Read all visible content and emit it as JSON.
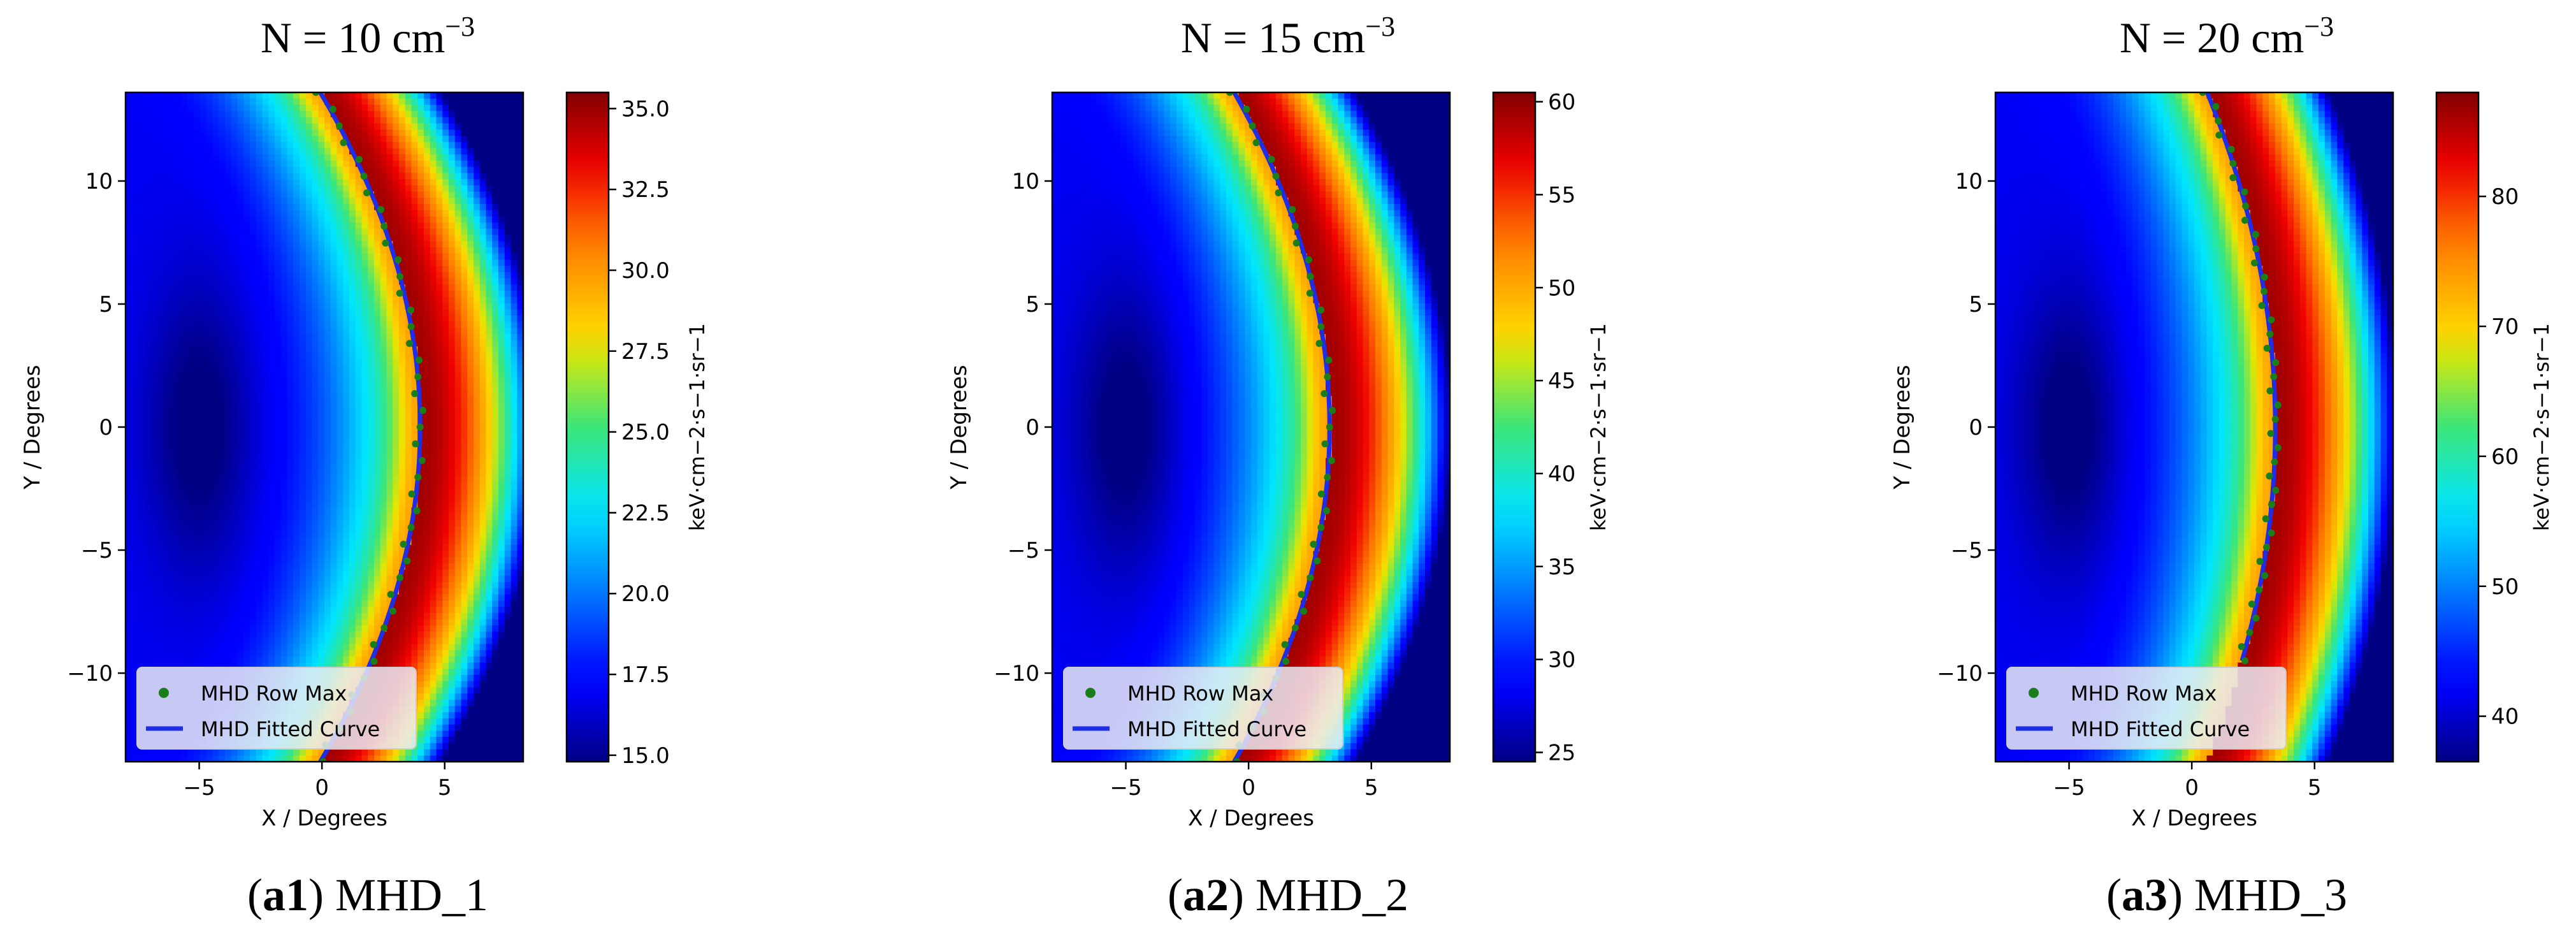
{
  "figure": {
    "panels": [
      {
        "title_prefix": "N = ",
        "title_value": "10",
        "title_unit": " cm",
        "title_exponent": "−3",
        "caption_open": "(",
        "caption_label": "a1",
        "caption_rest": ") MHD_1"
      },
      {
        "title_prefix": "N = ",
        "title_value": "15",
        "title_unit": " cm",
        "title_exponent": "−3",
        "caption_open": "(",
        "caption_label": "a2",
        "caption_rest": ") MHD_2"
      },
      {
        "title_prefix": "N = ",
        "title_value": "20",
        "title_unit": " cm",
        "title_exponent": "−3",
        "caption_open": "(",
        "caption_label": "a3",
        "caption_rest": ") MHD_3"
      }
    ]
  },
  "chart_data": [
    {
      "type": "heatmap",
      "title": "N = 10 cm−3",
      "xlabel": "X / Degrees",
      "ylabel": "Y / Degrees",
      "colorbar_label": "keV·cm−2·s−1·sr−1",
      "xlim": [
        -8,
        8.2
      ],
      "ylim": [
        -13.6,
        13.6
      ],
      "x_ticks": [
        -5,
        0,
        5
      ],
      "y_ticks": [
        -10,
        -5,
        0,
        5,
        10
      ],
      "colorbar_range": [
        14.8,
        35.5
      ],
      "colorbar_ticks": [
        "15.0",
        "17.5",
        "20.0",
        "22.5",
        "25.0",
        "27.5",
        "30.0",
        "32.5",
        "35.0"
      ],
      "colormap": "jet",
      "boundary": {
        "a": 4.0,
        "b": 0.022,
        "y_top": 13.6,
        "y_bottom": -13.6
      },
      "legend": {
        "position": "lower-left",
        "entries": [
          {
            "label": "MHD Row Max",
            "marker": "dot",
            "color": "#1a7f1a"
          },
          {
            "label": "MHD Fitted Curve",
            "marker": "line",
            "color": "#1f2ee6"
          }
        ]
      }
    },
    {
      "type": "heatmap",
      "title": "N = 15 cm−3",
      "xlabel": "X / Degrees",
      "ylabel": "Y / Degrees",
      "colorbar_label": "keV·cm−2·s−1·sr−1",
      "xlim": [
        -8,
        8.2
      ],
      "ylim": [
        -13.6,
        13.6
      ],
      "x_ticks": [
        -5,
        0,
        5
      ],
      "y_ticks": [
        -10,
        -5,
        0,
        5,
        10
      ],
      "colorbar_range": [
        24.5,
        60.5
      ],
      "colorbar_ticks": [
        "25",
        "30",
        "35",
        "40",
        "45",
        "50",
        "55",
        "60"
      ],
      "colormap": "jet",
      "boundary": {
        "a": 3.3,
        "b": 0.021,
        "y_top": 13.6,
        "y_bottom": -13.6
      },
      "legend": {
        "position": "lower-left",
        "entries": [
          {
            "label": "MHD Row Max",
            "marker": "dot",
            "color": "#1a7f1a"
          },
          {
            "label": "MHD Fitted Curve",
            "marker": "line",
            "color": "#1f2ee6"
          }
        ]
      }
    },
    {
      "type": "heatmap",
      "title": "N = 20 cm−3",
      "xlabel": "X / Degrees",
      "ylabel": "Y / Degrees",
      "colorbar_label": "keV·cm−2·s−1·sr−1",
      "xlim": [
        -8,
        8.2
      ],
      "ylim": [
        -13.6,
        13.6
      ],
      "x_ticks": [
        -5,
        0,
        5
      ],
      "y_ticks": [
        -10,
        -5,
        0,
        5,
        10
      ],
      "colorbar_range": [
        36.5,
        88
      ],
      "colorbar_ticks": [
        "40",
        "50",
        "60",
        "70",
        "80"
      ],
      "colormap": "jet",
      "boundary": {
        "a": 3.4,
        "b": 0.015,
        "y_top": 13.6,
        "y_bottom": -9.5
      },
      "legend": {
        "position": "lower-left",
        "entries": [
          {
            "label": "MHD Row Max",
            "marker": "dot",
            "color": "#1a7f1a"
          },
          {
            "label": "MHD Fitted Curve",
            "marker": "line",
            "color": "#1f2ee6"
          }
        ]
      }
    }
  ]
}
